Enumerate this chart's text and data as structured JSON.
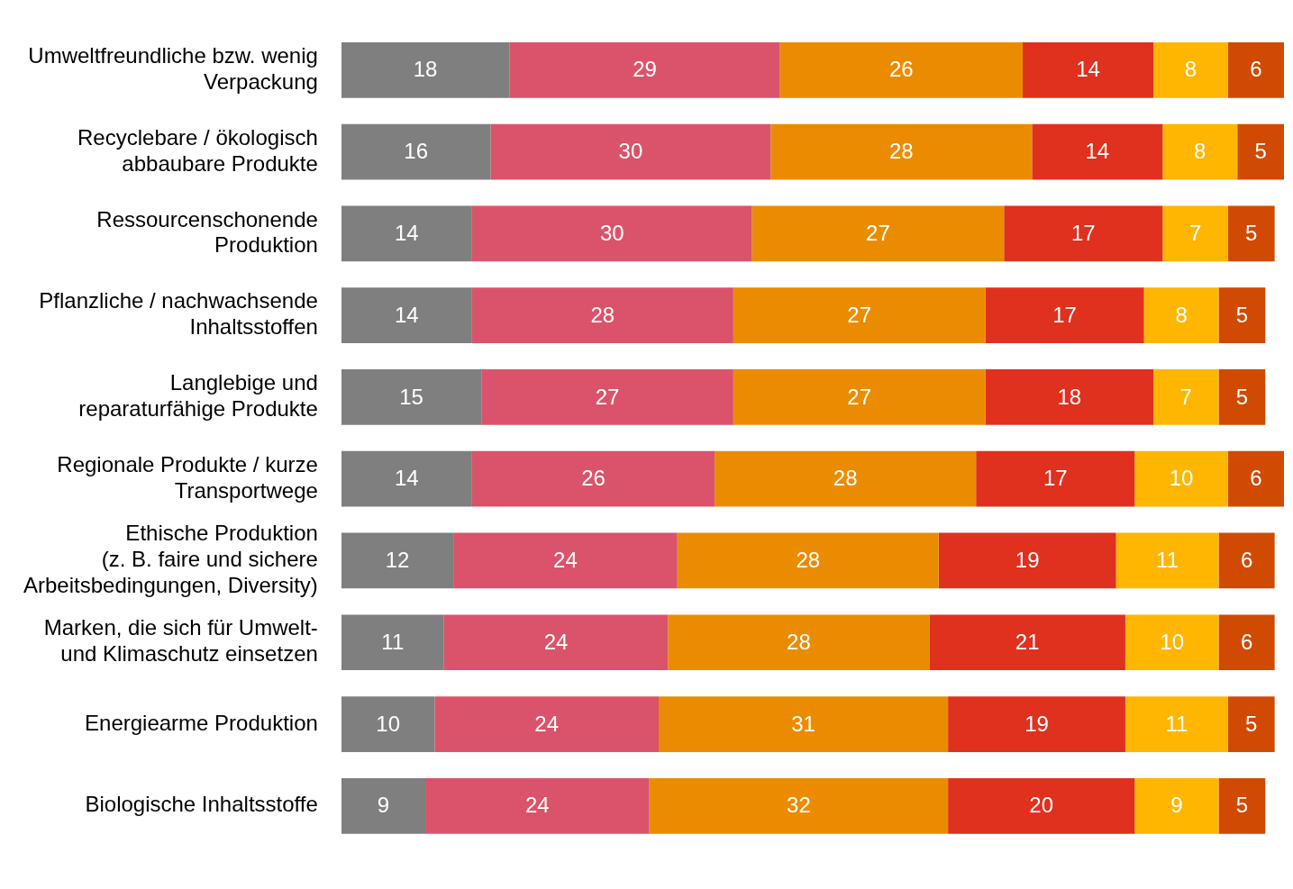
{
  "chart_data": {
    "type": "bar",
    "orientation": "horizontal",
    "stacked": true,
    "data_labels": true,
    "categories": [
      "Umweltfreundliche bzw. wenig\nVerpackung",
      "Recyclebare / ökologisch\nabbaubare Produkte",
      "Ressourcenschonende\nProduktion",
      "Pflanzliche / nachwachsende\nInhaltsstoffen",
      "Langlebige und\nreparaturfähige Produkte",
      "Regionale Produkte / kurze\nTransportwege",
      "Ethische Produktion\n(z. B. faire und sichere\nArbeitsbedingungen, Diversity)",
      "Marken, die sich für Umwelt-\nund Klimaschutz einsetzen",
      "Energiearme Produktion",
      "Biologische Inhaltsstoffe"
    ],
    "series": [
      {
        "color": "#7f7f7f",
        "values": [
          18,
          16,
          14,
          14,
          15,
          14,
          12,
          11,
          10,
          9
        ]
      },
      {
        "color": "#db536a",
        "values": [
          29,
          30,
          30,
          28,
          27,
          26,
          24,
          24,
          24,
          24
        ]
      },
      {
        "color": "#eb8c00",
        "values": [
          26,
          28,
          27,
          27,
          27,
          28,
          28,
          28,
          31,
          32
        ]
      },
      {
        "color": "#e0301e",
        "values": [
          14,
          14,
          17,
          17,
          18,
          17,
          19,
          21,
          19,
          20
        ]
      },
      {
        "color": "#ffb600",
        "values": [
          8,
          8,
          7,
          8,
          7,
          10,
          11,
          10,
          11,
          9
        ]
      },
      {
        "color": "#d04a02",
        "values": [
          6,
          5,
          5,
          5,
          5,
          6,
          6,
          6,
          5,
          5
        ]
      }
    ]
  }
}
